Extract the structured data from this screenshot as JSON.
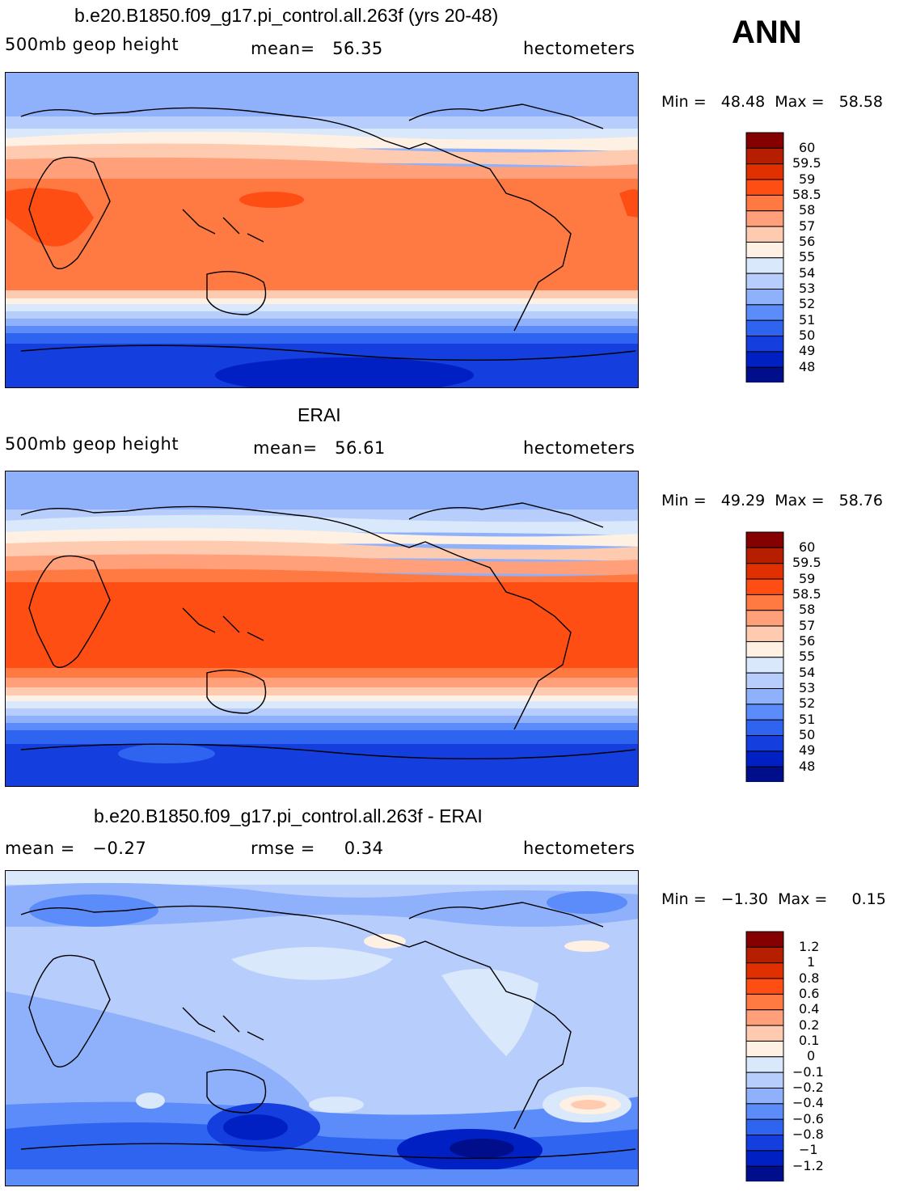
{
  "season": "ANN",
  "panels": [
    {
      "title": "b.e20.B1850.f09_g17.pi_control.all.263f (yrs 20-48)",
      "left": "500mb geop height",
      "center": "mean=   56.35",
      "right": "hectometers",
      "minmax": "Min =   48.48  Max =   58.58",
      "levels": [
        "60",
        "59.5",
        "59",
        "58.5",
        "58",
        "57",
        "56",
        "55",
        "54",
        "53",
        "52",
        "51",
        "50",
        "49",
        "48"
      ],
      "colors": [
        "#850000",
        "#b61e00",
        "#e03000",
        "#ff4e14",
        "#ff7a42",
        "#ffa07a",
        "#ffcbb0",
        "#fff0e4",
        "#d9e8fb",
        "#b7cdfb",
        "#8fb1fb",
        "#5b8cfa",
        "#2e64f0",
        "#143ede",
        "#0020c4",
        "#000e8c"
      ]
    },
    {
      "title": "ERAI",
      "left": "500mb geop height",
      "center": "mean=   56.61",
      "right": "hectometers",
      "minmax": "Min =   49.29  Max =   58.76",
      "levels": [
        "60",
        "59.5",
        "59",
        "58.5",
        "58",
        "57",
        "56",
        "55",
        "54",
        "53",
        "52",
        "51",
        "50",
        "49",
        "48"
      ],
      "colors": [
        "#850000",
        "#b61e00",
        "#e03000",
        "#ff4e14",
        "#ff7a42",
        "#ffa07a",
        "#ffcbb0",
        "#fff0e4",
        "#d9e8fb",
        "#b7cdfb",
        "#8fb1fb",
        "#5b8cfa",
        "#2e64f0",
        "#143ede",
        "#0020c4",
        "#000e8c"
      ]
    },
    {
      "title": "b.e20.B1850.f09_g17.pi_control.all.263f - ERAI",
      "left": "mean =   −0.27",
      "center": "rmse =     0.34",
      "right": "hectometers",
      "minmax": "Min =   −1.30  Max =     0.15",
      "levels": [
        "1.2",
        "1",
        "0.8",
        "0.6",
        "0.4",
        "0.2",
        "0.1",
        "0",
        "−0.1",
        "−0.2",
        "−0.4",
        "−0.6",
        "−0.8",
        "−1",
        "−1.2"
      ],
      "colors": [
        "#850000",
        "#b61e00",
        "#e03000",
        "#ff4e14",
        "#ff7a42",
        "#ffa07a",
        "#ffcbb0",
        "#fff0e4",
        "#d9e8fb",
        "#b7cdfb",
        "#8fb1fb",
        "#5b8cfa",
        "#2e64f0",
        "#143ede",
        "#0020c4",
        "#000e8c"
      ]
    }
  ]
}
